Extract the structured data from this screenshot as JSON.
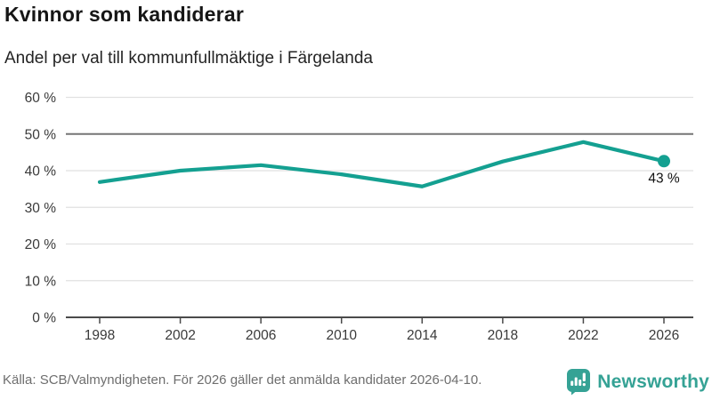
{
  "header": {
    "title": "Kvinnor som kandiderar",
    "subtitle": "Andel per val till kommunfullmäktige i Färgelanda"
  },
  "chart_data": {
    "type": "line",
    "title": "Kvinnor som kandiderar",
    "subtitle": "Andel per val till kommunfullmäktige i Färgelanda",
    "x": [
      1998,
      2002,
      2006,
      2010,
      2014,
      2018,
      2022,
      2026
    ],
    "x_labels": [
      "1998",
      "2002",
      "2006",
      "2010",
      "2014",
      "2018",
      "2022",
      "2026"
    ],
    "values": [
      36.9,
      40.0,
      41.5,
      39.0,
      35.7,
      42.5,
      47.8,
      42.6
    ],
    "unit": "%",
    "ylim": [
      0,
      60
    ],
    "yticks": [
      0,
      10,
      20,
      30,
      40,
      50,
      60
    ],
    "ytick_labels": [
      "0 %",
      "10 %",
      "20 %",
      "30 %",
      "40 %",
      "50 %",
      "60 %"
    ],
    "grid": "horizontal",
    "legend": "none",
    "reference_line": 50,
    "end_label": "43 %",
    "colors": {
      "line": "#14a091",
      "grid": "#e1e1e1",
      "grid_strong": "#757575",
      "axis": "#4a4a4a"
    }
  },
  "footer": {
    "source": "Källa: SCB/Valmyndigheten. För 2026 gäller det anmälda kandidater 2026-04-10.",
    "brand": "Newsworthy",
    "brand_color": "#35a295"
  }
}
